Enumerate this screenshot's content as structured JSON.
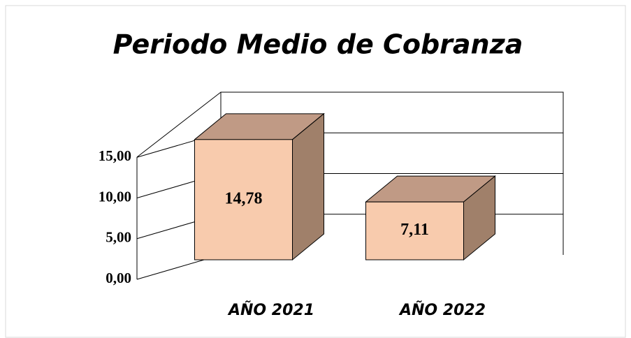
{
  "chart_data": {
    "type": "bar3d",
    "title": "Periodo Medio de Cobranza",
    "categories": [
      "AÑO 2021",
      "AÑO 2022"
    ],
    "values": [
      14.78,
      7.11
    ],
    "value_labels": [
      "14,78",
      "7,11"
    ],
    "color": "#f8cbad",
    "ylim": [
      0,
      20
    ],
    "yticks": [
      {
        "value": 0,
        "label": "0,00"
      },
      {
        "value": 5,
        "label": "5,00"
      },
      {
        "value": 10,
        "label": "10,00"
      },
      {
        "value": 15,
        "label": "15,00"
      }
    ],
    "grid": true
  }
}
